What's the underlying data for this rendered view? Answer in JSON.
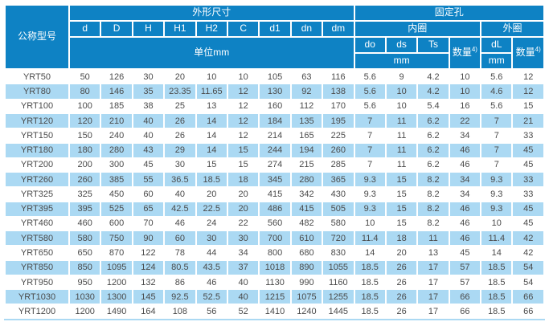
{
  "table": {
    "colors": {
      "header_bg": "#0e82c4",
      "header_text": "#ffffff",
      "row_bg": "#ffffff",
      "row_alt_bg": "#abd9f3",
      "text": "#4a4a4a"
    },
    "column_keys": [
      "model",
      "d",
      "D",
      "H",
      "H1",
      "H2",
      "C",
      "d1",
      "dn",
      "dm",
      "do",
      "ds",
      "Ts",
      "qty-inner",
      "dL",
      "qty-outer"
    ],
    "header_rows": [
      [
        {
          "name": "header-model",
          "label": "公称型号",
          "rowspan": 4
        },
        {
          "name": "header-dim-group",
          "label": "外形尺寸",
          "colspan": 9
        },
        {
          "name": "header-hole-group",
          "label": "固定孔",
          "colspan": 6
        }
      ],
      [
        {
          "name": "header-col-d",
          "label": "d"
        },
        {
          "name": "header-col-D",
          "label": "D"
        },
        {
          "name": "header-col-H",
          "label": "H"
        },
        {
          "name": "header-col-H1",
          "label": "H1"
        },
        {
          "name": "header-col-H2",
          "label": "H2"
        },
        {
          "name": "header-col-C",
          "label": "C"
        },
        {
          "name": "header-col-d1",
          "label": "d1"
        },
        {
          "name": "header-col-dn",
          "label": "dn"
        },
        {
          "name": "header-col-dm",
          "label": "dm"
        },
        {
          "name": "header-inner-group",
          "label": "内圈",
          "colspan": 4
        },
        {
          "name": "header-outer-group",
          "label": "外圈",
          "colspan": 2
        }
      ],
      [
        {
          "name": "header-unit-mm",
          "label": "单位mm",
          "colspan": 9,
          "rowspan": 2
        },
        {
          "name": "header-col-do",
          "label": "do"
        },
        {
          "name": "header-col-ds",
          "label": "ds"
        },
        {
          "name": "header-col-Ts",
          "label": "Ts"
        },
        {
          "name": "header-inner-qty",
          "label": "数量",
          "sup": "4)",
          "rowspan": 2
        },
        {
          "name": "header-col-dL",
          "label": "dL"
        },
        {
          "name": "header-outer-qty",
          "label": "数量",
          "sup": "4)",
          "rowspan": 2
        }
      ],
      [
        {
          "name": "header-inner-unit",
          "label": "mm",
          "colspan": 3
        },
        {
          "name": "header-outer-unit",
          "label": "mm"
        }
      ]
    ],
    "rows": [
      [
        "YRT50",
        "50",
        "126",
        "30",
        "20",
        "10",
        "10",
        "105",
        "63",
        "116",
        "5.6",
        "9",
        "4.2",
        "10",
        "5.6",
        "12"
      ],
      [
        "YRT80",
        "80",
        "146",
        "35",
        "23.35",
        "11.65",
        "12",
        "130",
        "92",
        "138",
        "5.6",
        "10",
        "4.2",
        "10",
        "4.6",
        "12"
      ],
      [
        "YRT100",
        "100",
        "185",
        "38",
        "25",
        "13",
        "12",
        "160",
        "112",
        "170",
        "5.6",
        "10",
        "5.4",
        "16",
        "5.6",
        "15"
      ],
      [
        "YRT120",
        "120",
        "210",
        "40",
        "26",
        "14",
        "12",
        "184",
        "135",
        "195",
        "7",
        "11",
        "6.2",
        "22",
        "7",
        "21"
      ],
      [
        "YRT150",
        "150",
        "240",
        "40",
        "26",
        "14",
        "12",
        "214",
        "165",
        "225",
        "7",
        "11",
        "6.2",
        "34",
        "7",
        "33"
      ],
      [
        "YRT180",
        "180",
        "280",
        "43",
        "29",
        "14",
        "15",
        "244",
        "194",
        "260",
        "7",
        "11",
        "6.2",
        "46",
        "7",
        "45"
      ],
      [
        "YRT200",
        "200",
        "300",
        "45",
        "30",
        "15",
        "15",
        "274",
        "215",
        "285",
        "7",
        "11",
        "6.2",
        "46",
        "7",
        "45"
      ],
      [
        "YRT260",
        "260",
        "385",
        "55",
        "36.5",
        "18.5",
        "18",
        "345",
        "280",
        "365",
        "9.3",
        "15",
        "8.2",
        "34",
        "9.3",
        "33"
      ],
      [
        "YRT325",
        "325",
        "450",
        "60",
        "40",
        "20",
        "20",
        "415",
        "342",
        "430",
        "9.3",
        "15",
        "8.2",
        "34",
        "9.3",
        "33"
      ],
      [
        "YRT395",
        "395",
        "525",
        "65",
        "42.5",
        "22.5",
        "20",
        "486",
        "415",
        "505",
        "9.3",
        "15",
        "8.2",
        "46",
        "9.3",
        "45"
      ],
      [
        "YRT460",
        "460",
        "600",
        "70",
        "46",
        "24",
        "22",
        "560",
        "482",
        "580",
        "10",
        "15",
        "8.2",
        "46",
        "10",
        "45"
      ],
      [
        "YRT580",
        "580",
        "750",
        "90",
        "60",
        "30",
        "30",
        "700",
        "610",
        "720",
        "11.4",
        "18",
        "11",
        "46",
        "11.4",
        "42"
      ],
      [
        "YRT650",
        "650",
        "870",
        "122",
        "78",
        "44",
        "34",
        "800",
        "680",
        "830",
        "14",
        "20",
        "13",
        "45",
        "14",
        "42"
      ],
      [
        "YRT850",
        "850",
        "1095",
        "124",
        "80.5",
        "43.5",
        "37",
        "1018",
        "890",
        "1055",
        "18.5",
        "26",
        "17",
        "57",
        "18.5",
        "54"
      ],
      [
        "YRT950",
        "950",
        "1200",
        "132",
        "86",
        "46",
        "40",
        "1130",
        "990",
        "1160",
        "18.5",
        "26",
        "17",
        "57",
        "18.5",
        "54"
      ],
      [
        "YRT1030",
        "1030",
        "1300",
        "145",
        "92.5",
        "52.5",
        "40",
        "1215",
        "1075",
        "1255",
        "18.5",
        "26",
        "17",
        "66",
        "18.5",
        "66"
      ],
      [
        "YRT1200",
        "1200",
        "1490",
        "164",
        "108",
        "56",
        "52",
        "1410",
        "1240",
        "1445",
        "18.5",
        "26",
        "17",
        "66",
        "18.5",
        "66"
      ]
    ]
  }
}
